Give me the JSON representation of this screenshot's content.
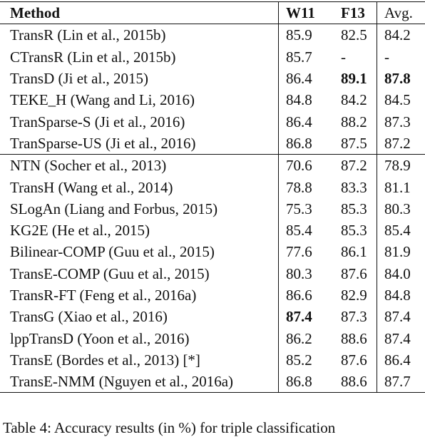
{
  "table": {
    "header": [
      "Method",
      "W11",
      "F13",
      "Avg."
    ],
    "groups": [
      [
        [
          "TransR (Lin et al., 2015b)",
          "85.9",
          "82.5",
          "84.2"
        ],
        [
          "CTransR (Lin et al., 2015b)",
          "85.7",
          "-",
          "-"
        ],
        [
          "TransD (Ji et al., 2015)",
          "86.4",
          "89.1",
          "87.8"
        ],
        [
          "TEKE_H (Wang and Li, 2016)",
          "84.8",
          "84.2",
          "84.5"
        ],
        [
          "TranSparse-S (Ji et al., 2016)",
          "86.4",
          "88.2",
          "87.3"
        ],
        [
          "TranSparse-US (Ji et al., 2016)",
          "86.8",
          "87.5",
          "87.2"
        ]
      ],
      [
        [
          "NTN (Socher et al., 2013)",
          "70.6",
          "87.2",
          "78.9"
        ],
        [
          "TransH (Wang et al., 2014)",
          "78.8",
          "83.3",
          "81.1"
        ],
        [
          "SLogAn (Liang and Forbus, 2015)",
          "75.3",
          "85.3",
          "80.3"
        ],
        [
          "KG2E (He et al., 2015)",
          "85.4",
          "85.3",
          "85.4"
        ],
        [
          "Bilinear-COMP (Guu et al., 2015)",
          "77.6",
          "86.1",
          "81.9"
        ],
        [
          "TransE-COMP (Guu et al., 2015)",
          "80.3",
          "87.6",
          "84.0"
        ],
        [
          "TransR-FT (Feng et al., 2016a)",
          "86.6",
          "82.9",
          "84.8"
        ],
        [
          "TransG (Xiao et al., 2016)",
          "87.4",
          "87.3",
          "87.4"
        ],
        [
          "lppTransD (Yoon et al., 2016)",
          "86.2",
          "88.6",
          "87.4"
        ],
        [
          "TransE (Bordes et al., 2013) [*]",
          "85.2",
          "87.6",
          "86.4"
        ],
        [
          "TransE-NMM (Nguyen et al., 2016a)",
          "86.8",
          "88.6",
          "87.7"
        ]
      ]
    ]
  },
  "caption": "Table 4: Accuracy results (in %) for triple classification"
}
